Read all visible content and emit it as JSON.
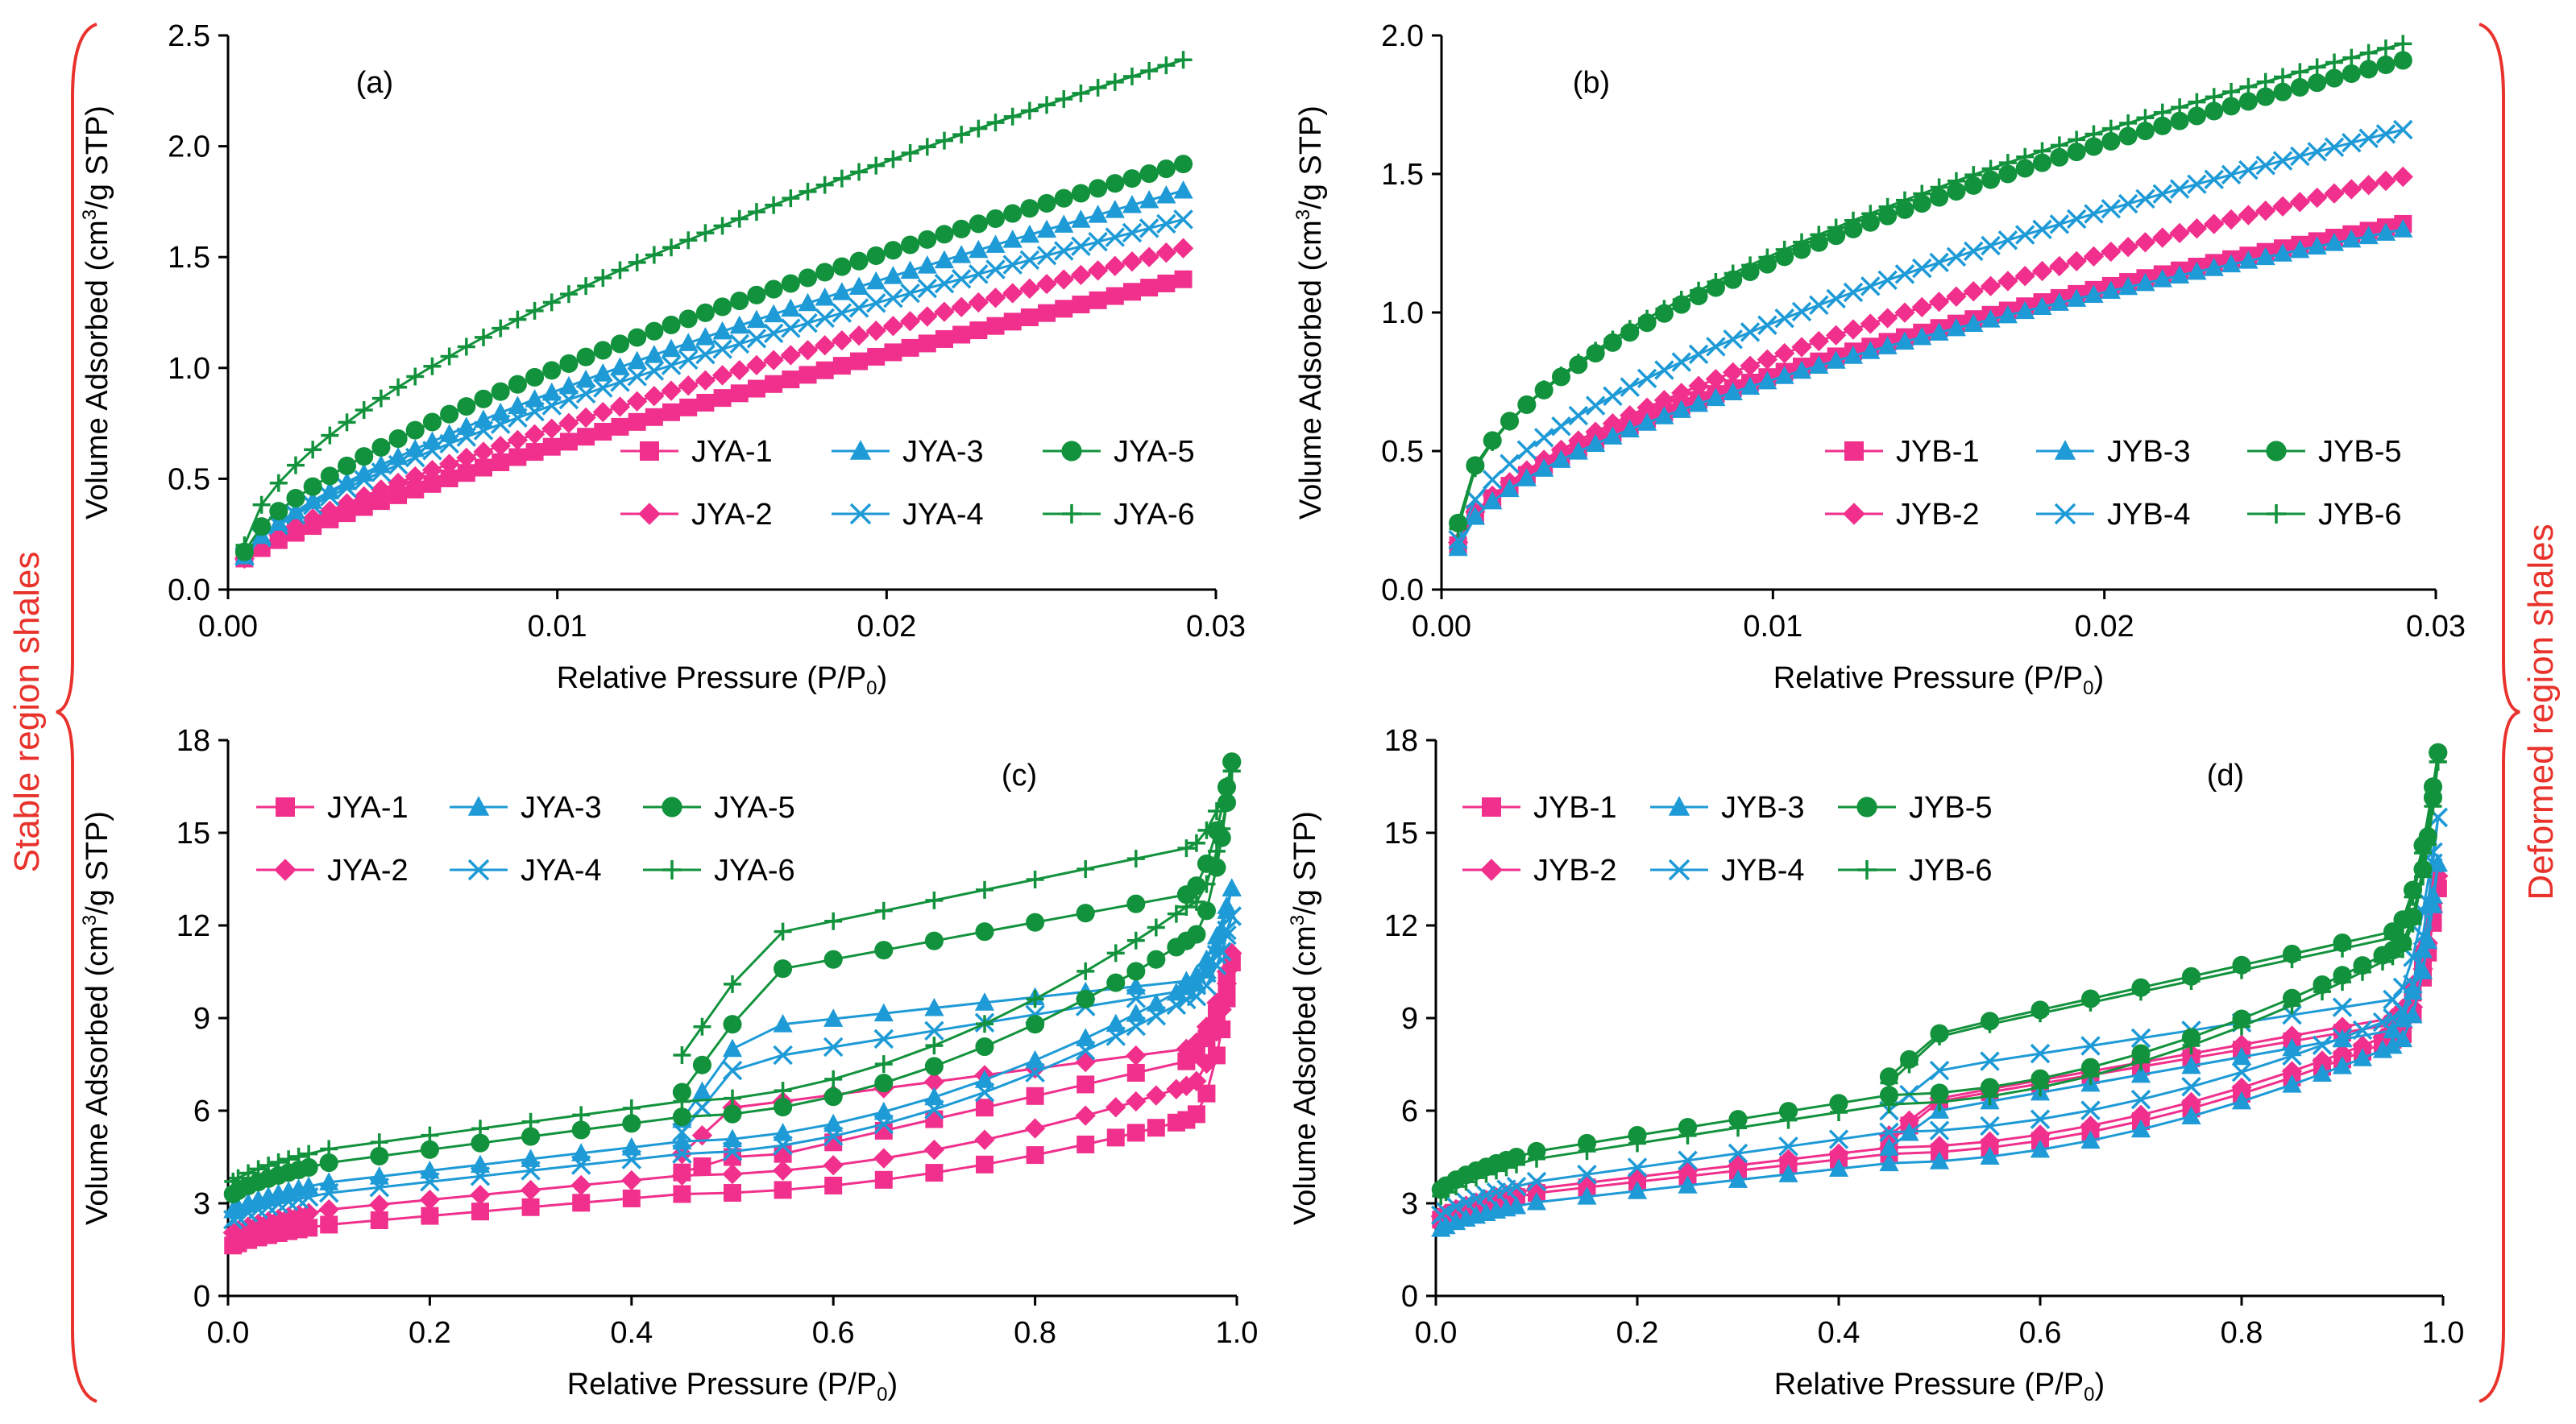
{
  "colors": {
    "pink": "#f0308c",
    "blue": "#1e9ad6",
    "green": "#12923c",
    "red": "#e8322b"
  },
  "side_labels": {
    "left": "Stable region shales",
    "right": "Deformed region shales"
  },
  "chart_data": [
    {
      "type": "line",
      "panel_label": "(a)",
      "xlabel": "Relative Pressure (P/P",
      "xlabel_sub": "0",
      "xlabel_end": ")",
      "ylabel_pre": "Volume Adsorbed (cm",
      "ylabel_sup": "3",
      "ylabel_post": "/g STP)",
      "xlim": [
        0,
        0.03
      ],
      "ylim": [
        0,
        2.5
      ],
      "xticks": [
        "0.00",
        "0.01",
        "0.02",
        "0.03"
      ],
      "xtick_values": [
        0,
        0.01,
        0.02,
        0.03
      ],
      "yticks": [
        "0.0",
        "0.5",
        "1.0",
        "1.5",
        "2.0",
        "2.5"
      ],
      "ytick_values": [
        0,
        0.5,
        1.0,
        1.5,
        2.0,
        2.5
      ],
      "legend": "right-lower",
      "series": [
        {
          "name": "JYA-1",
          "color": "#f0308c",
          "marker": "square",
          "curve": {
            "kind": "pow",
            "ymin": 0.14,
            "yend": 1.4,
            "exp": 0.82
          }
        },
        {
          "name": "JYA-2",
          "color": "#f0308c",
          "marker": "diamond",
          "curve": {
            "kind": "pow",
            "ymin": 0.14,
            "yend": 1.54,
            "exp": 0.78
          }
        },
        {
          "name": "JYA-3",
          "color": "#1e9ad6",
          "marker": "triangle",
          "curve": {
            "kind": "pow",
            "ymin": 0.15,
            "yend": 1.8,
            "exp": 0.72
          }
        },
        {
          "name": "JYA-4",
          "color": "#1e9ad6",
          "marker": "x",
          "curve": {
            "kind": "pow",
            "ymin": 0.15,
            "yend": 1.67,
            "exp": 0.72
          }
        },
        {
          "name": "JYA-5",
          "color": "#12923c",
          "marker": "circle",
          "curve": {
            "kind": "pow",
            "ymin": 0.17,
            "yend": 1.92,
            "exp": 0.68
          }
        },
        {
          "name": "JYA-6",
          "color": "#12923c",
          "marker": "plus",
          "curve": {
            "kind": "pow",
            "ymin": 0.2,
            "yend": 2.39,
            "exp": 0.62
          }
        }
      ]
    },
    {
      "type": "line",
      "panel_label": "(b)",
      "xlabel": "Relative Pressure (P/P",
      "xlabel_sub": "0",
      "xlabel_end": ")",
      "ylabel_pre": "Volume Adsorbed (cm",
      "ylabel_sup": "3",
      "ylabel_post": "/g STP)",
      "xlim": [
        0,
        0.03
      ],
      "ylim": [
        0,
        2.0
      ],
      "xticks": [
        "0.00",
        "0.01",
        "0.02",
        "0.03"
      ],
      "xtick_values": [
        0,
        0.01,
        0.02,
        0.03
      ],
      "yticks": [
        "0.0",
        "0.5",
        "1.0",
        "1.5",
        "2.0"
      ],
      "ytick_values": [
        0,
        0.5,
        1.0,
        1.5,
        2.0
      ],
      "legend": "right-lower",
      "series": [
        {
          "name": "JYB-1",
          "color": "#f0308c",
          "marker": "square",
          "curve": {
            "kind": "pow",
            "ymin": 0.16,
            "yend": 1.32,
            "exp": 0.58
          }
        },
        {
          "name": "JYB-2",
          "color": "#f0308c",
          "marker": "diamond",
          "curve": {
            "kind": "pow",
            "ymin": 0.17,
            "yend": 1.49,
            "exp": 0.62
          }
        },
        {
          "name": "JYB-3",
          "color": "#1e9ad6",
          "marker": "triangle",
          "curve": {
            "kind": "pow",
            "ymin": 0.15,
            "yend": 1.3,
            "exp": 0.58
          }
        },
        {
          "name": "JYB-4",
          "color": "#1e9ad6",
          "marker": "x",
          "curve": {
            "kind": "pow",
            "ymin": 0.18,
            "yend": 1.66,
            "exp": 0.58
          }
        },
        {
          "name": "JYB-5",
          "color": "#12923c",
          "marker": "circle",
          "curve": {
            "kind": "pow",
            "ymin": 0.24,
            "yend": 1.91,
            "exp": 0.52
          }
        },
        {
          "name": "JYB-6",
          "color": "#12923c",
          "marker": "plus",
          "curve": {
            "kind": "pow",
            "ymin": 0.22,
            "yend": 1.97,
            "exp": 0.52
          }
        }
      ]
    },
    {
      "type": "line",
      "panel_label": "(c)",
      "xlabel": "Relative Pressure (P/P",
      "xlabel_sub": "0",
      "xlabel_end": ")",
      "ylabel_pre": "Volume Adsorbed (cm",
      "ylabel_sup": "3",
      "ylabel_post": "/g STP)",
      "xlim": [
        0,
        1.0
      ],
      "ylim": [
        0,
        18
      ],
      "xticks": [
        "0.0",
        "0.2",
        "0.4",
        "0.6",
        "0.8",
        "1.0"
      ],
      "xtick_values": [
        0,
        0.2,
        0.4,
        0.6,
        0.8,
        1.0
      ],
      "yticks": [
        "0",
        "3",
        "6",
        "9",
        "12",
        "15",
        "18"
      ],
      "ytick_values": [
        0,
        3,
        6,
        9,
        12,
        15,
        18
      ],
      "legend": "left-upper",
      "series": [
        {
          "name": "JYA-1",
          "color": "#f0308c",
          "marker": "square",
          "curve": {
            "kind": "iso",
            "a0": 1.5,
            "a45": 3.3,
            "a95": 5.7,
            "top": 10.8,
            "d45": 4.0,
            "d50": 4.5,
            "d55": 4.6,
            "d95": 7.6
          }
        },
        {
          "name": "JYA-2",
          "color": "#f0308c",
          "marker": "diamond",
          "curve": {
            "kind": "iso",
            "a0": 1.9,
            "a45": 3.9,
            "a95": 6.8,
            "top": 11.1,
            "d45": 4.6,
            "d50": 6.1,
            "d55": 6.3,
            "d95": 8.0
          }
        },
        {
          "name": "JYA-3",
          "color": "#1e9ad6",
          "marker": "triangle",
          "curve": {
            "kind": "iso",
            "a0": 2.6,
            "a45": 5.0,
            "a95": 10.0,
            "top": 13.2,
            "d45": 5.7,
            "d50": 8.0,
            "d55": 8.8,
            "d95": 10.2
          }
        },
        {
          "name": "JYA-4",
          "color": "#1e9ad6",
          "marker": "x",
          "curve": {
            "kind": "iso",
            "a0": 2.3,
            "a45": 4.6,
            "a95": 9.6,
            "top": 12.3,
            "d45": 5.3,
            "d50": 7.3,
            "d55": 7.8,
            "d95": 9.9
          }
        },
        {
          "name": "JYA-5",
          "color": "#12923c",
          "marker": "circle",
          "curve": {
            "kind": "iso",
            "a0": 3.1,
            "a45": 5.8,
            "a95": 11.5,
            "top": 17.3,
            "d45": 6.6,
            "d50": 8.8,
            "d55": 10.6,
            "d95": 13.0
          }
        },
        {
          "name": "JYA-6",
          "color": "#12923c",
          "marker": "plus",
          "curve": {
            "kind": "iso",
            "a0": 3.5,
            "a45": 6.3,
            "a95": 12.6,
            "top": 17.0,
            "d45": 7.8,
            "d50": 10.1,
            "d55": 11.8,
            "d95": 14.5
          }
        }
      ]
    },
    {
      "type": "line",
      "panel_label": "(d)",
      "xlabel": "Relative Pressure (P/P",
      "xlabel_sub": "0",
      "xlabel_end": ")",
      "ylabel_pre": "Volume Adsorbed (cm",
      "ylabel_sup": "3",
      "ylabel_post": "/g STP)",
      "xlim": [
        0,
        1.0
      ],
      "ylim": [
        0,
        18
      ],
      "xticks": [
        "0.0",
        "0.2",
        "0.4",
        "0.6",
        "0.8",
        "1.0"
      ],
      "xtick_values": [
        0,
        0.2,
        0.4,
        0.6,
        0.8,
        1.0
      ],
      "yticks": [
        "0",
        "3",
        "6",
        "9",
        "12",
        "15",
        "18"
      ],
      "ytick_values": [
        0,
        3,
        6,
        9,
        12,
        15,
        18
      ],
      "legend": "left-upper",
      "series": [
        {
          "name": "JYB-1",
          "color": "#f0308c",
          "marker": "square",
          "curve": {
            "kind": "iso",
            "a0": 2.3,
            "a45": 4.6,
            "a95": 8.3,
            "top": 13.2,
            "d45": 5.0,
            "d50": 6.3,
            "d55": 6.6,
            "d95": 8.8
          }
        },
        {
          "name": "JYB-2",
          "color": "#f0308c",
          "marker": "diamond",
          "curve": {
            "kind": "iso",
            "a0": 2.4,
            "a45": 4.8,
            "a95": 8.5,
            "top": 13.6,
            "d45": 5.2,
            "d50": 6.4,
            "d55": 6.7,
            "d95": 9.0
          }
        },
        {
          "name": "JYB-3",
          "color": "#1e9ad6",
          "marker": "triangle",
          "curve": {
            "kind": "iso",
            "a0": 2.0,
            "a45": 4.3,
            "a95": 8.1,
            "top": 14.0,
            "d45": 4.8,
            "d50": 6.0,
            "d55": 6.3,
            "d95": 8.6
          }
        },
        {
          "name": "JYB-4",
          "color": "#1e9ad6",
          "marker": "x",
          "curve": {
            "kind": "iso",
            "a0": 2.4,
            "a45": 5.3,
            "a95": 9.0,
            "top": 15.5,
            "d45": 6.0,
            "d50": 7.3,
            "d55": 7.6,
            "d95": 9.6
          }
        },
        {
          "name": "JYB-5",
          "color": "#12923c",
          "marker": "circle",
          "curve": {
            "kind": "iso",
            "a0": 3.2,
            "a45": 6.5,
            "a95": 11.2,
            "top": 17.6,
            "d45": 7.1,
            "d50": 8.5,
            "d55": 8.9,
            "d95": 11.8
          }
        },
        {
          "name": "JYB-6",
          "color": "#12923c",
          "marker": "plus",
          "curve": {
            "kind": "iso",
            "a0": 3.0,
            "a45": 6.2,
            "a95": 11.0,
            "top": 17.3,
            "d45": 6.9,
            "d50": 8.4,
            "d55": 8.8,
            "d95": 11.6
          }
        }
      ]
    }
  ]
}
